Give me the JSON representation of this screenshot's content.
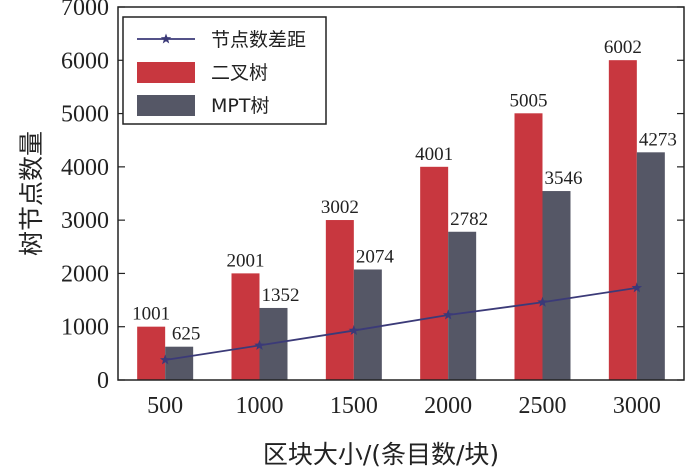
{
  "chart_data": {
    "type": "bar",
    "categories": [
      "500",
      "1000",
      "1500",
      "2000",
      "2500",
      "3000"
    ],
    "series": [
      {
        "name": "二叉树",
        "kind": "bar",
        "color": "#c8373f",
        "values": [
          1001,
          2001,
          3002,
          4001,
          5005,
          6002
        ]
      },
      {
        "name": "MPT树",
        "kind": "bar",
        "color": "#555766",
        "values": [
          625,
          1352,
          2074,
          2782,
          3546,
          4273
        ]
      },
      {
        "name": "节点数差距",
        "kind": "line",
        "color": "#3b3a78",
        "values": [
          376,
          649,
          928,
          1219,
          1459,
          1729
        ]
      }
    ],
    "xlabel": "区块大小/(条目数/块)",
    "ylabel": "树节点数量",
    "ylim": [
      0,
      7000
    ],
    "yticks": [
      "0",
      "1000",
      "2000",
      "3000",
      "4000",
      "5000",
      "6000",
      "7000"
    ],
    "grid": false,
    "legend_position": "top-left"
  }
}
